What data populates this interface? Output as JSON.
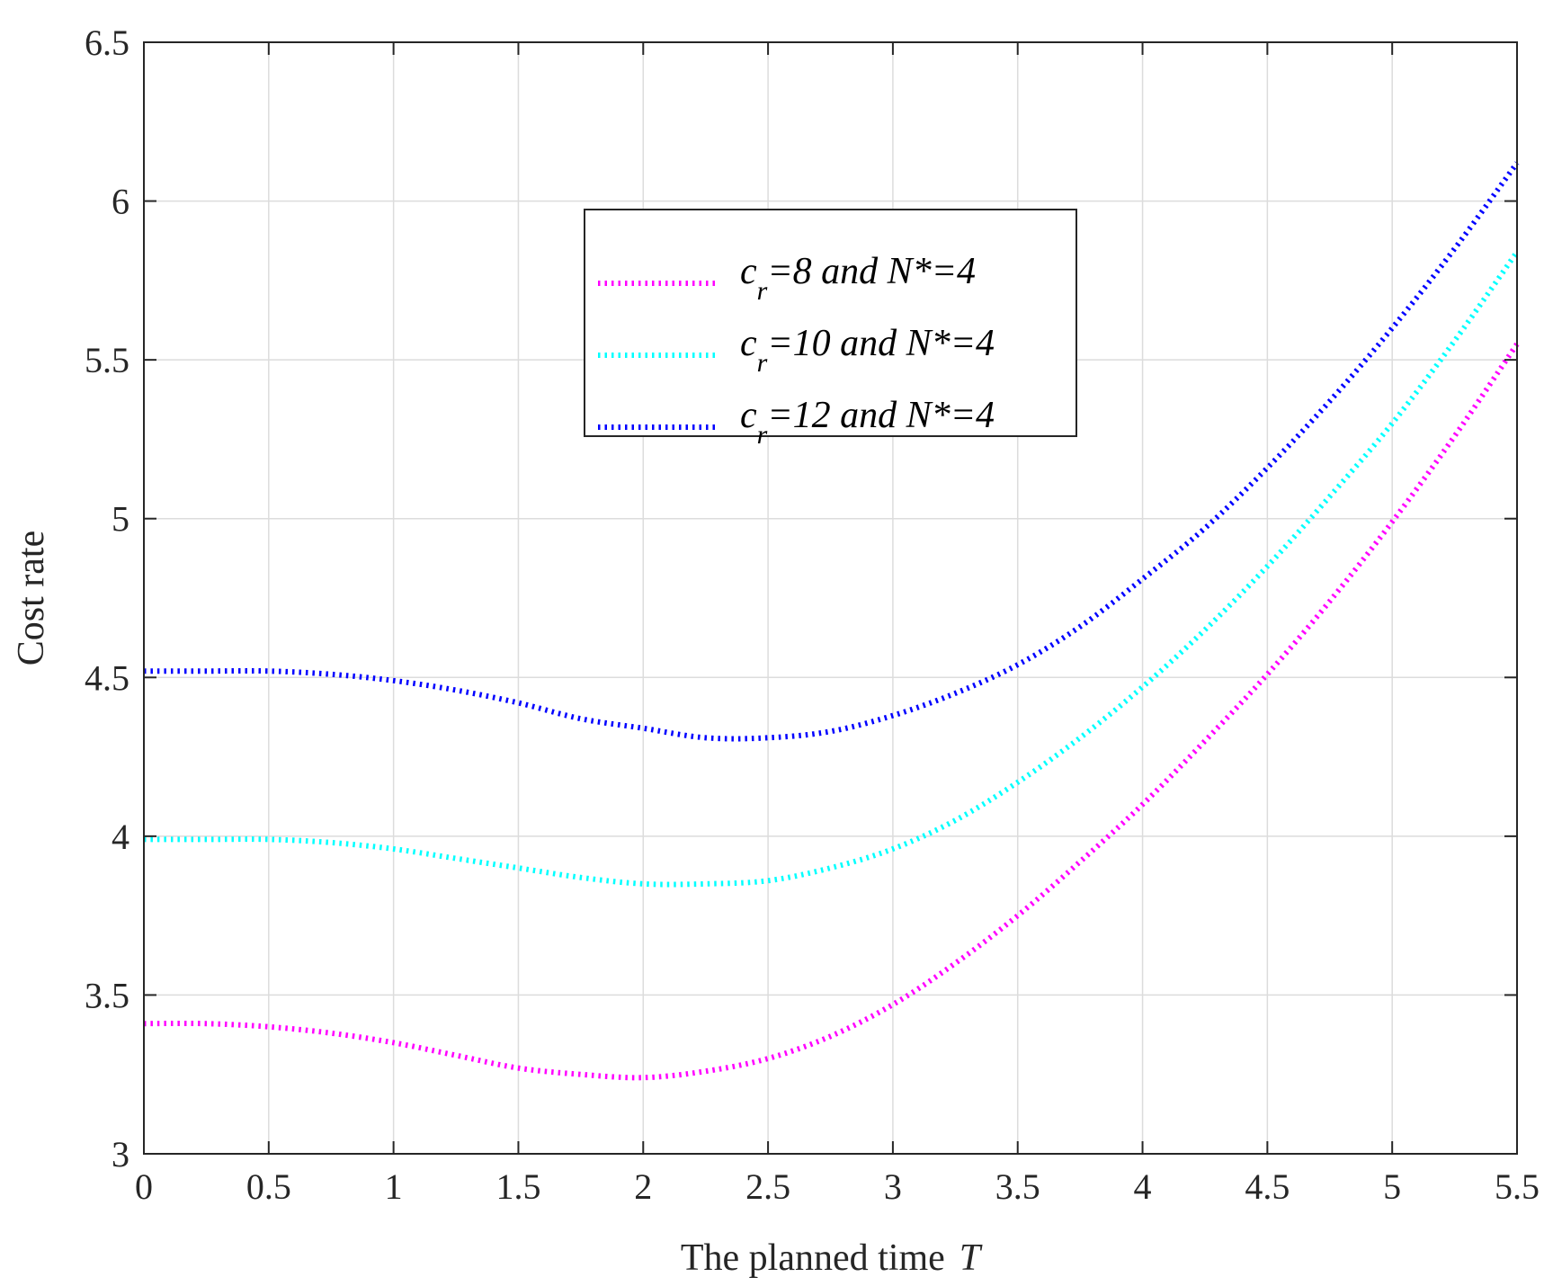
{
  "chart_data": {
    "type": "line",
    "xlabel": "The planned time",
    "xlabel_var": "T",
    "ylabel": "Cost rate",
    "xlim": [
      0,
      5.5
    ],
    "ylim": [
      3,
      6.5
    ],
    "x_ticks": [
      0,
      0.5,
      1,
      1.5,
      2,
      2.5,
      3,
      3.5,
      4,
      4.5,
      5,
      5.5
    ],
    "x_tick_labels": [
      "0",
      "0.5",
      "1",
      "1.5",
      "2",
      "2.5",
      "3",
      "3.5",
      "4",
      "4.5",
      "5",
      "5.5"
    ],
    "y_ticks": [
      3,
      3.5,
      4,
      4.5,
      5,
      5.5,
      6,
      6.5
    ],
    "y_tick_labels": [
      "3",
      "3.5",
      "4",
      "4.5",
      "5",
      "5.5",
      "6",
      "6.5"
    ],
    "grid": true,
    "legend_position": "top-center",
    "series": [
      {
        "name": "c_r=8 and N*=4",
        "legend_sym": "c",
        "legend_sub": "r",
        "legend_rest": "=8  and  N*=4",
        "color": "#ff00ff",
        "x": [
          0,
          0.25,
          0.5,
          0.75,
          1.0,
          1.25,
          1.5,
          1.75,
          2.0,
          2.25,
          2.5,
          2.75,
          3.0,
          3.25,
          3.5,
          3.75,
          4.0,
          4.25,
          4.5,
          4.75,
          5.0,
          5.25,
          5.5
        ],
        "y": [
          3.41,
          3.41,
          3.4,
          3.38,
          3.35,
          3.31,
          3.27,
          3.25,
          3.24,
          3.26,
          3.3,
          3.37,
          3.47,
          3.6,
          3.75,
          3.92,
          4.1,
          4.3,
          4.51,
          4.74,
          4.99,
          5.26,
          5.55
        ]
      },
      {
        "name": "c_r=10 and N*=4",
        "legend_sym": "c",
        "legend_sub": "r",
        "legend_rest": "=10  and  N*=4",
        "color": "#00ffff",
        "x": [
          0,
          0.25,
          0.5,
          0.75,
          1.0,
          1.25,
          1.5,
          1.75,
          2.0,
          2.25,
          2.5,
          2.75,
          3.0,
          3.25,
          3.5,
          3.75,
          4.0,
          4.25,
          4.5,
          4.75,
          5.0,
          5.25,
          5.5
        ],
        "y": [
          3.99,
          3.99,
          3.99,
          3.98,
          3.96,
          3.93,
          3.9,
          3.87,
          3.85,
          3.85,
          3.86,
          3.9,
          3.96,
          4.05,
          4.17,
          4.31,
          4.47,
          4.65,
          4.85,
          5.07,
          5.3,
          5.56,
          5.84
        ]
      },
      {
        "name": "c_r=12 and N*=4",
        "legend_sym": "c",
        "legend_sub": "r",
        "legend_rest": "=12  and  N*=4",
        "color": "#0000ff",
        "x": [
          0,
          0.25,
          0.5,
          0.75,
          1.0,
          1.25,
          1.5,
          1.75,
          2.0,
          2.25,
          2.5,
          2.75,
          3.0,
          3.25,
          3.5,
          3.75,
          4.0,
          4.25,
          4.5,
          4.75,
          5.0,
          5.25,
          5.5
        ],
        "y": [
          4.52,
          4.52,
          4.52,
          4.51,
          4.49,
          4.46,
          4.42,
          4.37,
          4.34,
          4.31,
          4.31,
          4.33,
          4.38,
          4.45,
          4.54,
          4.66,
          4.81,
          4.97,
          5.16,
          5.37,
          5.6,
          5.85,
          6.12
        ]
      }
    ]
  }
}
